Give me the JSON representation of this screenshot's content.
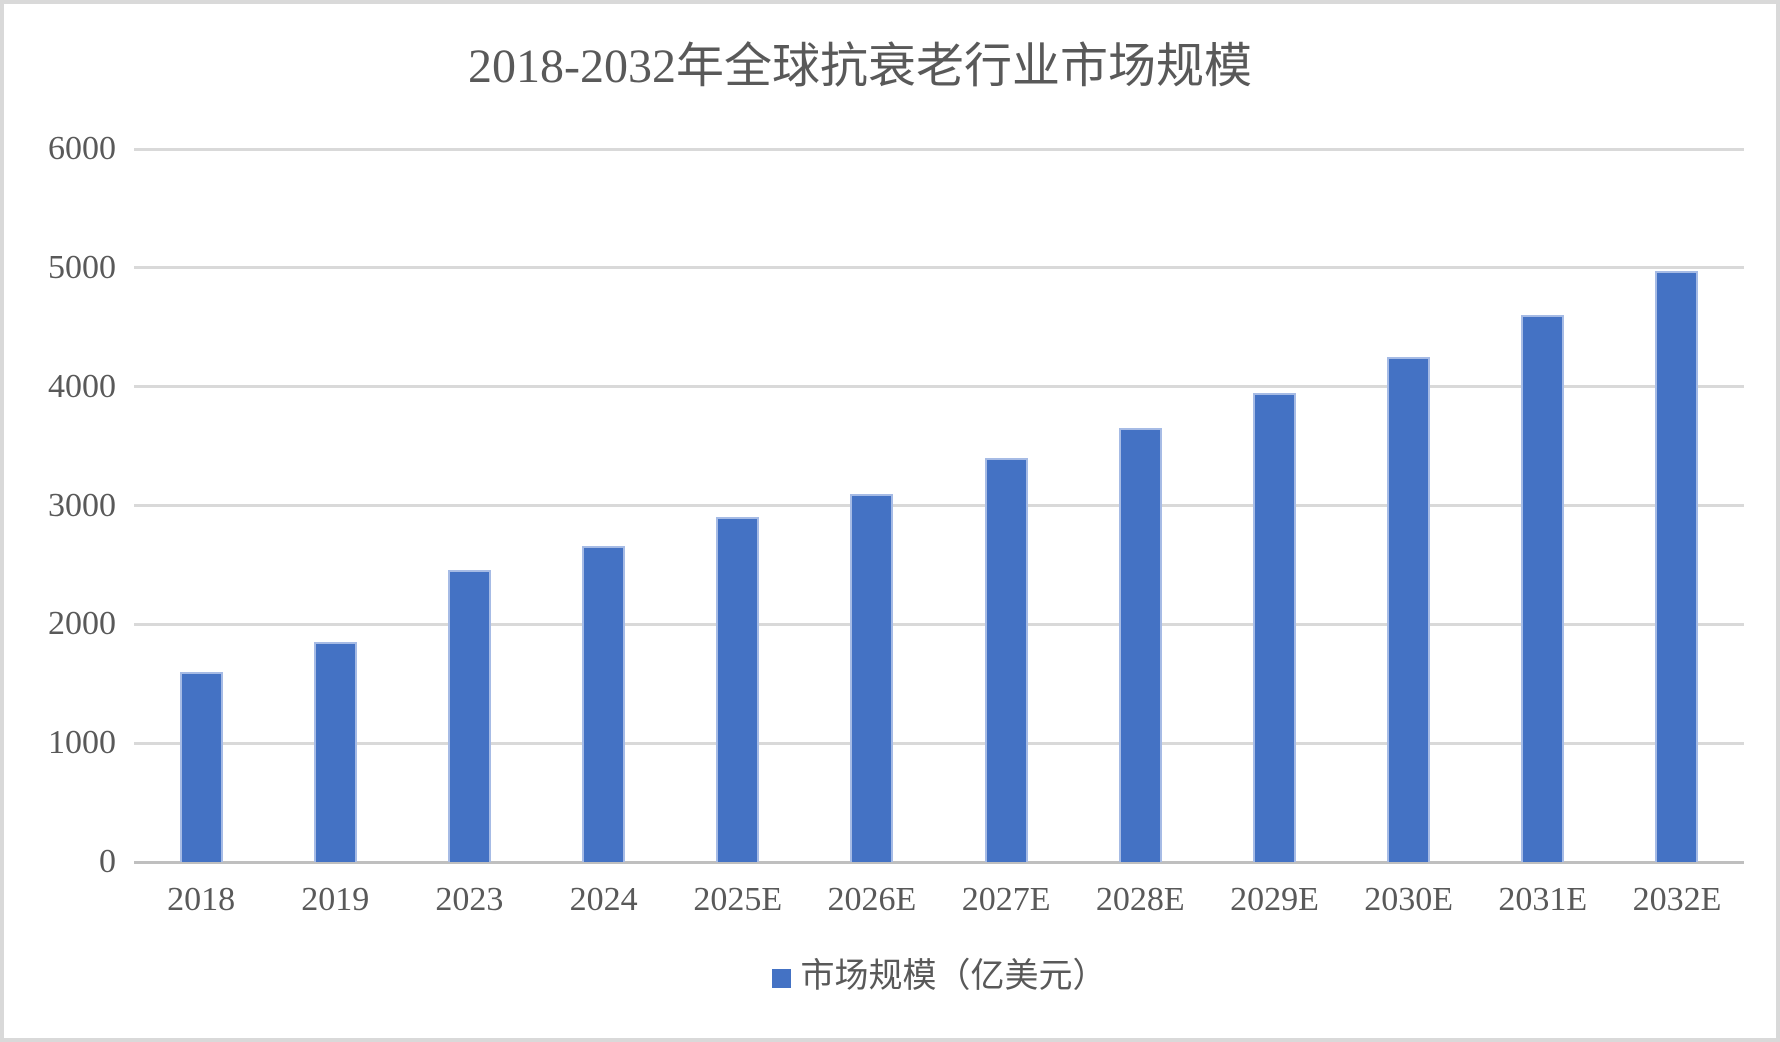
{
  "chart_data": {
    "type": "bar",
    "title": "2018-2032年全球抗衰老行业市场规模",
    "categories": [
      "2018",
      "2019",
      "2023",
      "2024",
      "2025E",
      "2026E",
      "2027E",
      "2028E",
      "2029E",
      "2030E",
      "2031E",
      "2032E"
    ],
    "values": [
      1600,
      1850,
      2460,
      2660,
      2900,
      3100,
      3400,
      3650,
      3950,
      4250,
      4600,
      4970
    ],
    "legend": [
      "市场规模（亿美元）"
    ],
    "legend_position": "bottom",
    "xlabel": "",
    "ylabel": "",
    "ylim": [
      0,
      6000
    ],
    "ytick_interval": 1000,
    "yticks": [
      0,
      1000,
      2000,
      3000,
      4000,
      5000,
      6000
    ],
    "grid": true
  },
  "colors": {
    "bar_fill": "#4472C4",
    "bar_edge": "#a6bbe5",
    "gridline": "#d9d9d9",
    "axis_line": "#bfbfbf",
    "text": "#595959",
    "frame_border": "#d9d9d9",
    "background": "#ffffff"
  }
}
